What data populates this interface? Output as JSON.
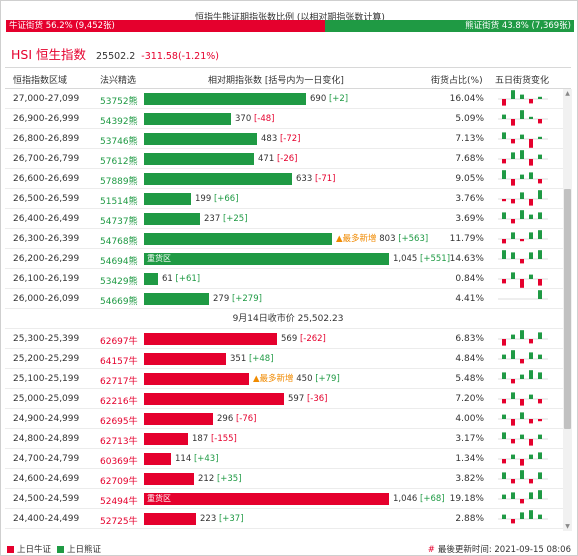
{
  "ratio": {
    "title": "恒指牛熊证期指张数比例 (以相对期指张数计算)",
    "bull_label": "牛证街货 56.2% (9,452张)",
    "bull_share": 0.562,
    "bear_label": "熊证街货 43.8% (7,369张)"
  },
  "index": {
    "name": "HSI 恒生指数",
    "value": "25502.2",
    "change": "-311.58(-1.21%)"
  },
  "columns": {
    "range": "恒指指数区域",
    "code": "法兴精选",
    "contracts": "相对期指张数 [括号内为一日变化]",
    "share": "街货占比(%)",
    "trend": "五日街货变化"
  },
  "max_contracts": 1046,
  "bear_rows": [
    {
      "range": "27,000-27,099",
      "code": "53752熊",
      "contracts": 690,
      "contracts_label": "690",
      "change": "[+2]",
      "share": "16.04%",
      "trend": [
        -3,
        4,
        2,
        -2,
        1
      ]
    },
    {
      "range": "26,900-26,999",
      "code": "54392熊",
      "contracts": 370,
      "contracts_label": "370",
      "change": "[-48]",
      "share": "5.09%",
      "trend": [
        2,
        -3,
        4,
        1,
        -2
      ]
    },
    {
      "range": "26,800-26,899",
      "code": "53746熊",
      "contracts": 483,
      "contracts_label": "483",
      "change": "[-72]",
      "share": "7.13%",
      "trend": [
        3,
        -2,
        2,
        -4,
        1
      ]
    },
    {
      "range": "26,700-26,799",
      "code": "57612熊",
      "contracts": 471,
      "contracts_label": "471",
      "change": "[-26]",
      "share": "7.68%",
      "trend": [
        -2,
        3,
        4,
        -3,
        2
      ]
    },
    {
      "range": "26,600-26,699",
      "code": "57889熊",
      "contracts": 633,
      "contracts_label": "633",
      "change": "[-71]",
      "share": "9.05%",
      "trend": [
        4,
        -3,
        2,
        3,
        -2
      ]
    },
    {
      "range": "26,500-26,599",
      "code": "51514熊",
      "contracts": 199,
      "contracts_label": "199",
      "change": "[+66]",
      "share": "3.76%",
      "trend": [
        -1,
        -2,
        3,
        -3,
        4
      ]
    },
    {
      "range": "26,400-26,499",
      "code": "54737熊",
      "contracts": 237,
      "contracts_label": "237",
      "change": "[+25]",
      "share": "3.69%",
      "trend": [
        3,
        -2,
        4,
        2,
        3
      ]
    },
    {
      "range": "26,300-26,399",
      "code": "54768熊",
      "contracts": 803,
      "contracts_label": "803",
      "change": "[+563]",
      "share": "11.79%",
      "note": "▲最多新增",
      "trend": [
        -2,
        3,
        -1,
        3,
        4
      ]
    },
    {
      "range": "26,200-26,299",
      "code": "54694熊",
      "contracts": 1045,
      "contracts_label": "1,045",
      "change": "[+551]",
      "share": "14.63%",
      "bar_note": "重货区",
      "trend": [
        4,
        3,
        -2,
        3,
        4
      ]
    },
    {
      "range": "26,100-26,199",
      "code": "53429熊",
      "contracts": 61,
      "contracts_label": "61",
      "change": "[+61]",
      "share": "0.84%",
      "trend": [
        -2,
        3,
        -4,
        2,
        -3
      ]
    },
    {
      "range": "26,000-26,099",
      "code": "54669熊",
      "contracts": 279,
      "contracts_label": "279",
      "change": "[+279]",
      "share": "4.41%",
      "trend": [
        0,
        0,
        0,
        0,
        4
      ]
    }
  ],
  "divider_label": "9月14日收市价 25,502.23",
  "bull_rows": [
    {
      "range": "25,300-25,399",
      "code": "62697牛",
      "contracts": 569,
      "contracts_label": "569",
      "change": "[-262]",
      "share": "6.83%",
      "trend": [
        -3,
        2,
        4,
        -2,
        3
      ]
    },
    {
      "range": "25,200-25,299",
      "code": "64157牛",
      "contracts": 351,
      "contracts_label": "351",
      "change": "[+48]",
      "share": "4.84%",
      "trend": [
        2,
        4,
        -2,
        3,
        2
      ]
    },
    {
      "range": "25,100-25,199",
      "code": "62717牛",
      "contracts": 450,
      "contracts_label": "450",
      "change": "[+79]",
      "share": "5.48%",
      "note": "▲最多新增",
      "trend": [
        3,
        -2,
        2,
        4,
        3
      ]
    },
    {
      "range": "25,000-25,099",
      "code": "62216牛",
      "contracts": 597,
      "contracts_label": "597",
      "change": "[-36]",
      "share": "7.20%",
      "trend": [
        -2,
        3,
        -3,
        2,
        -2
      ]
    },
    {
      "range": "24,900-24,999",
      "code": "62695牛",
      "contracts": 296,
      "contracts_label": "296",
      "change": "[-76]",
      "share": "4.00%",
      "trend": [
        2,
        -3,
        3,
        -2,
        -1
      ]
    },
    {
      "range": "24,800-24,899",
      "code": "62713牛",
      "contracts": 187,
      "contracts_label": "187",
      "change": "[-155]",
      "share": "3.17%",
      "trend": [
        3,
        -2,
        2,
        -3,
        2
      ]
    },
    {
      "range": "24,700-24,799",
      "code": "60369牛",
      "contracts": 114,
      "contracts_label": "114",
      "change": "[+43]",
      "share": "1.34%",
      "trend": [
        -2,
        2,
        -3,
        2,
        3
      ]
    },
    {
      "range": "24,600-24,699",
      "code": "62709牛",
      "contracts": 212,
      "contracts_label": "212",
      "change": "[+35]",
      "share": "3.82%",
      "trend": [
        3,
        -2,
        4,
        -2,
        3
      ]
    },
    {
      "range": "24,500-24,599",
      "code": "52494牛",
      "contracts": 1046,
      "contracts_label": "1,046",
      "change": "[+68]",
      "share": "19.18%",
      "bar_note": "重货区",
      "trend": [
        2,
        3,
        -2,
        3,
        4
      ]
    },
    {
      "range": "24,400-24,499",
      "code": "52725牛",
      "contracts": 223,
      "contracts_label": "223",
      "change": "[+37]",
      "share": "2.88%",
      "trend": [
        2,
        -2,
        3,
        4,
        2
      ]
    }
  ],
  "legend": {
    "bull": "上日牛证",
    "bear": "上日熊证",
    "updated": "最後更新时间: 2021-09-15 08:06"
  },
  "colors": {
    "bull": "#e5002d",
    "bear": "#1f9a44",
    "note": "#f08a00"
  },
  "icons": {
    "scroll_up": "triangle-up",
    "scroll_down": "triangle-down",
    "note_marker": "triangle-up"
  }
}
